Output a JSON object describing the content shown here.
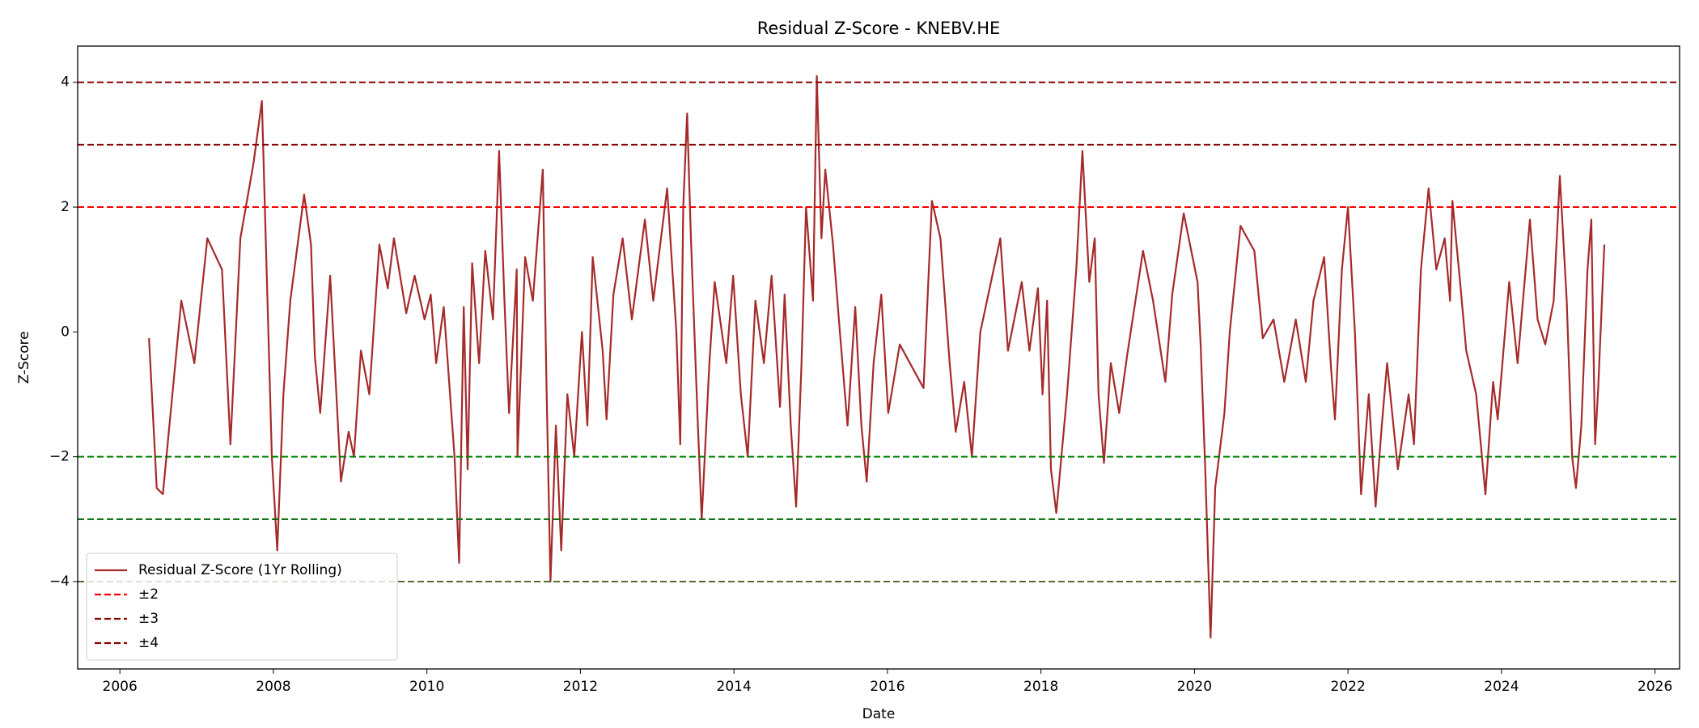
{
  "chart_data": {
    "type": "line",
    "title": "Residual Z-Score - KNEBV.HE",
    "x_label": "Date",
    "y_label": "Z-Score",
    "xlim": [
      2005.45,
      2026.32
    ],
    "ylim": [
      -5.4,
      4.58
    ],
    "xticks": [
      2006,
      2008,
      2010,
      2012,
      2014,
      2016,
      2018,
      2020,
      2022,
      2024,
      2026
    ],
    "yticks": [
      {
        "value": -4,
        "label": "−4"
      },
      {
        "value": -2,
        "label": "−2"
      },
      0,
      2,
      4
    ],
    "legend": "lower left",
    "x": [
      2006.38,
      2006.48,
      2006.56,
      2006.8,
      2006.97,
      2007.14,
      2007.33,
      2007.44,
      2007.57,
      2007.74,
      2007.85,
      2007.98,
      2008.05,
      2008.13,
      2008.22,
      2008.4,
      2008.49,
      2008.54,
      2008.61,
      2008.74,
      2008.88,
      2008.98,
      2009.05,
      2009.14,
      2009.25,
      2009.38,
      2009.49,
      2009.57,
      2009.73,
      2009.84,
      2009.97,
      2010.05,
      2010.12,
      2010.22,
      2010.36,
      2010.42,
      2010.48,
      2010.53,
      2010.59,
      2010.68,
      2010.76,
      2010.86,
      2010.94,
      2011.01,
      2011.07,
      2011.17,
      2011.18,
      2011.28,
      2011.38,
      2011.51,
      2011.56,
      2011.61,
      2011.68,
      2011.75,
      2011.83,
      2011.92,
      2012.02,
      2012.09,
      2012.16,
      2012.29,
      2012.34,
      2012.43,
      2012.55,
      2012.67,
      2012.84,
      2012.95,
      2013.13,
      2013.25,
      2013.3,
      2013.34,
      2013.39,
      2013.44,
      2013.53,
      2013.58,
      2013.68,
      2013.75,
      2013.9,
      2013.99,
      2014.09,
      2014.18,
      2014.28,
      2014.39,
      2014.49,
      2014.6,
      2014.66,
      2014.74,
      2014.81,
      2014.88,
      2014.94,
      2015.03,
      2015.08,
      2015.14,
      2015.19,
      2015.29,
      2015.38,
      2015.48,
      2015.58,
      2015.66,
      2015.73,
      2015.82,
      2015.92,
      2016.01,
      2016.16,
      2016.47,
      2016.58,
      2016.69,
      2016.81,
      2016.89,
      2017.0,
      2017.1,
      2017.21,
      2017.47,
      2017.57,
      2017.75,
      2017.85,
      2017.96,
      2018.02,
      2018.08,
      2018.13,
      2018.2,
      2018.34,
      2018.46,
      2018.54,
      2018.63,
      2018.7,
      2018.75,
      2018.82,
      2018.91,
      2019.02,
      2019.12,
      2019.33,
      2019.46,
      2019.62,
      2019.71,
      2019.86,
      2020.04,
      2020.08,
      2020.14,
      2020.21,
      2020.27,
      2020.39,
      2020.46,
      2020.6,
      2020.78,
      2020.89,
      2021.03,
      2021.17,
      2021.32,
      2021.45,
      2021.55,
      2021.69,
      2021.78,
      2021.83,
      2021.92,
      2022.0,
      2022.09,
      2022.17,
      2022.27,
      2022.36,
      2022.44,
      2022.51,
      2022.65,
      2022.79,
      2022.86,
      2022.95,
      2023.05,
      2023.15,
      2023.26,
      2023.33,
      2023.36,
      2023.46,
      2023.54,
      2023.67,
      2023.79,
      2023.89,
      2023.95,
      2024.1,
      2024.21,
      2024.37,
      2024.47,
      2024.57,
      2024.68,
      2024.76,
      2024.85,
      2024.92,
      2024.97,
      2025.04,
      2025.12,
      2025.17,
      2025.22,
      2025.26,
      2025.34
    ],
    "series": [
      {
        "name": "Residual Z-Score (1Yr Rolling)",
        "color": "#a52a2a",
        "values": [
          -0.1,
          -2.5,
          -2.6,
          0.5,
          -0.5,
          1.5,
          1.0,
          -1.8,
          1.5,
          2.7,
          3.7,
          -2.0,
          -3.5,
          -1.0,
          0.5,
          2.2,
          1.4,
          -0.4,
          -1.3,
          0.9,
          -2.4,
          -1.6,
          -2.0,
          -0.3,
          -1.0,
          1.4,
          0.7,
          1.5,
          0.3,
          0.9,
          0.2,
          0.6,
          -0.5,
          0.4,
          -2.0,
          -3.7,
          0.4,
          -2.2,
          1.1,
          -0.5,
          1.3,
          0.2,
          2.9,
          0.5,
          -1.3,
          1.0,
          -2.0,
          1.2,
          0.5,
          2.6,
          -1.0,
          -4.0,
          -1.5,
          -3.5,
          -1.0,
          -2.0,
          0.0,
          -1.5,
          1.2,
          -0.3,
          -1.4,
          0.6,
          1.5,
          0.2,
          1.8,
          0.5,
          2.3,
          0.0,
          -1.8,
          2.0,
          3.5,
          1.5,
          -1.5,
          -3.0,
          -0.5,
          0.8,
          -0.5,
          0.9,
          -1.0,
          -2.0,
          0.5,
          -0.5,
          0.9,
          -1.2,
          0.6,
          -1.5,
          -2.8,
          -0.5,
          2.0,
          0.5,
          4.1,
          1.5,
          2.6,
          1.4,
          0.0,
          -1.5,
          0.4,
          -1.5,
          -2.4,
          -0.5,
          0.6,
          -1.3,
          -0.2,
          -0.9,
          2.1,
          1.5,
          -0.5,
          -1.6,
          -0.8,
          -2.0,
          0.0,
          1.5,
          -0.3,
          0.8,
          -0.3,
          0.7,
          -1.0,
          0.5,
          -2.2,
          -2.9,
          -1.0,
          1.0,
          2.9,
          0.8,
          1.5,
          -1.0,
          -2.1,
          -0.5,
          -1.3,
          -0.4,
          1.3,
          0.5,
          -0.8,
          0.6,
          1.9,
          0.8,
          -0.2,
          -2.2,
          -4.9,
          -2.5,
          -1.3,
          0.0,
          1.7,
          1.3,
          -0.1,
          0.2,
          -0.8,
          0.2,
          -0.8,
          0.5,
          1.2,
          -0.6,
          -1.4,
          1.0,
          2.0,
          0.0,
          -2.6,
          -1.0,
          -2.8,
          -1.5,
          -0.5,
          -2.2,
          -1.0,
          -1.8,
          1.0,
          2.3,
          1.0,
          1.5,
          0.5,
          2.1,
          0.8,
          -0.3,
          -1.0,
          -2.6,
          -0.8,
          -1.4,
          0.8,
          -0.5,
          1.8,
          0.2,
          -0.2,
          0.5,
          2.5,
          0.5,
          -2.0,
          -2.5,
          -1.5,
          1.0,
          1.8,
          -1.8,
          -0.9,
          1.4
        ]
      }
    ],
    "reference_lines": [
      {
        "name": "±2",
        "values": [
          2,
          -2
        ],
        "colors": [
          "#ff0000",
          "#008000"
        ]
      },
      {
        "name": "±3",
        "values": [
          3,
          -3
        ],
        "colors": [
          "#8b0000",
          "#006400"
        ]
      },
      {
        "name": "±4",
        "values": [
          4,
          -4
        ],
        "colors": [
          "#8b0000",
          "#556b2f"
        ]
      }
    ]
  }
}
